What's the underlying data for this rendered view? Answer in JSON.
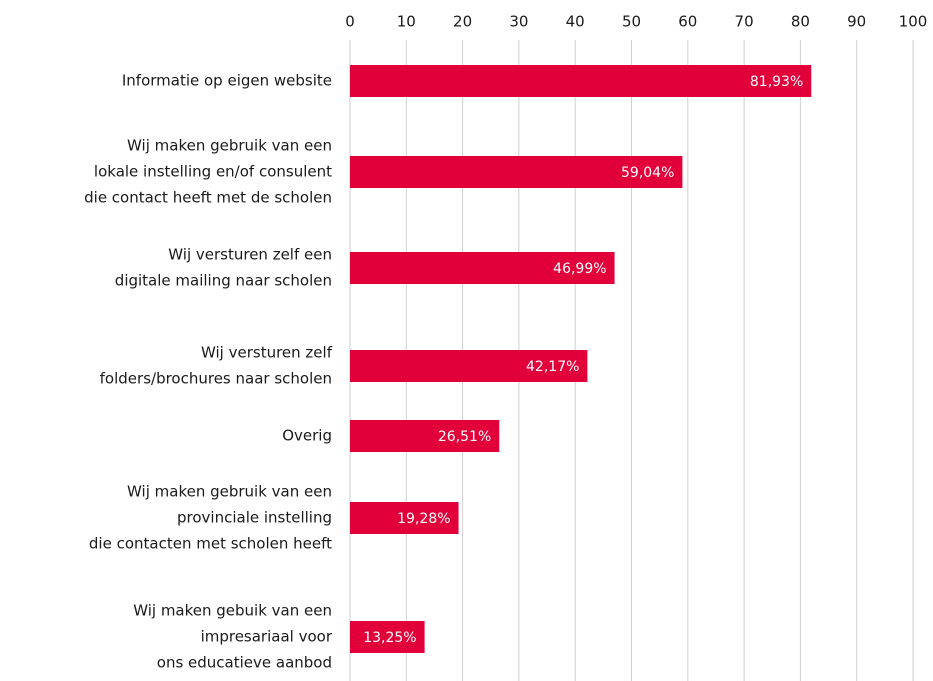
{
  "chart_data": {
    "type": "bar",
    "orientation": "horizontal",
    "categories": [
      [
        "Informatie op eigen website"
      ],
      [
        "Wij maken gebruik van een",
        "lokale instelling en/of consulent",
        "die contact heeft met de scholen"
      ],
      [
        "Wij versturen zelf een",
        "digitale mailing naar scholen"
      ],
      [
        "Wij versturen zelf",
        "folders/brochures naar scholen"
      ],
      [
        "Overig"
      ],
      [
        "Wij maken gebruik van een",
        "provinciale instelling",
        "die contacten met scholen heeft"
      ],
      [
        "Wij maken gebuik van een",
        "impresariaal voor",
        "ons educatieve aanbod"
      ]
    ],
    "values": [
      81.93,
      59.04,
      46.99,
      42.17,
      26.51,
      19.28,
      13.25
    ],
    "value_labels": [
      "81,93%",
      "59,04%",
      "46,99%",
      "42,17%",
      "26,51%",
      "19,28%",
      "13,25%"
    ],
    "color": "#e2003b",
    "xlim": [
      0,
      100
    ],
    "xticks": [
      0,
      10,
      20,
      30,
      40,
      50,
      60,
      70,
      80,
      90,
      100
    ],
    "grid": true
  }
}
